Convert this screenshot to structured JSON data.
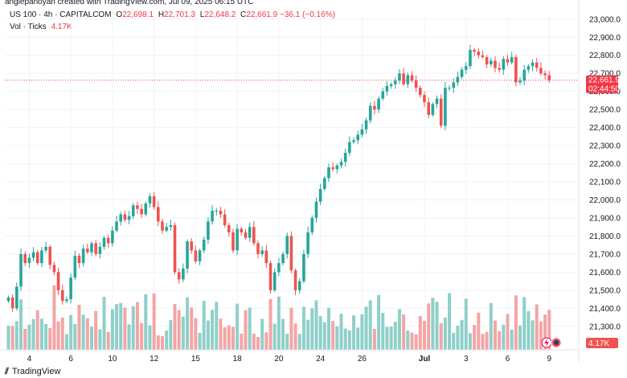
{
  "header": {
    "credit": "anglepanoyan created with TradingView.com, Jul 09, 2025 06:15 UTC",
    "symbol": "US 100 · 4h · CAPITALCOM",
    "o_label": "O",
    "o_value": "22,698.1",
    "h_label": "H",
    "h_value": "22,701.3",
    "l_label": "L",
    "l_value": "22,648.2",
    "c_label": "C",
    "c_value": "22,661.9",
    "change": "−36.1 (−0.16%)",
    "vol_label": "Vol · Ticks",
    "vol_value": "4.17K"
  },
  "price_tag": {
    "price": "22,661.9",
    "countdown": "02:44:50"
  },
  "vol_tag": "4.17K",
  "footer": {
    "brand": "TradingView"
  },
  "colors": {
    "up": "#26a69a",
    "down": "#ef5350",
    "vol_up": "#8fd0c9",
    "vol_down": "#f3a5a5",
    "grid": "#f0f3fa",
    "price_line": "#f23645"
  },
  "chart_data": {
    "type": "candlestick",
    "ylim": [
      21170,
      23040
    ],
    "y_ticks": [
      "23,000.0",
      "22,900.0",
      "22,800.0",
      "22,700.0",
      "22,600.0",
      "22,500.0",
      "22,400.0",
      "22,300.0",
      "22,200.0",
      "22,100.0",
      "22,000.0",
      "21,900.0",
      "21,800.0",
      "21,700.0",
      "21,600.0",
      "21,500.0",
      "21,400.0",
      "21,300.0"
    ],
    "x_labels": [
      {
        "label": "4",
        "index": 5
      },
      {
        "label": "6",
        "index": 15
      },
      {
        "label": "10",
        "index": 25
      },
      {
        "label": "12",
        "index": 35
      },
      {
        "label": "15",
        "index": 45
      },
      {
        "label": "18",
        "index": 55
      },
      {
        "label": "20",
        "index": 65
      },
      {
        "label": "24",
        "index": 75
      },
      {
        "label": "26",
        "index": 85
      },
      {
        "label": "Jul",
        "index": 100
      },
      {
        "label": "3",
        "index": 110
      },
      {
        "label": "6",
        "index": 120
      },
      {
        "label": "9",
        "index": 130
      }
    ],
    "close": [
      21460,
      21400,
      21520,
      21700,
      21650,
      21680,
      21710,
      21650,
      21720,
      21740,
      21640,
      21600,
      21500,
      21440,
      21450,
      21570,
      21690,
      21650,
      21730,
      21710,
      21760,
      21700,
      21740,
      21790,
      21760,
      21830,
      21880,
      21920,
      21890,
      21910,
      21970,
      21950,
      21920,
      21980,
      22020,
      21960,
      21880,
      21830,
      21850,
      21860,
      21600,
      21560,
      21620,
      21770,
      21720,
      21660,
      21720,
      21780,
      21880,
      21940,
      21940,
      21920,
      21860,
      21820,
      21720,
      21840,
      21820,
      21790,
      21850,
      21760,
      21700,
      21720,
      21650,
      21500,
      21600,
      21650,
      21700,
      21800,
      21610,
      21500,
      21550,
      21700,
      21820,
      21900,
      21990,
      22060,
      22120,
      22180,
      22170,
      22190,
      22210,
      22260,
      22320,
      22330,
      22360,
      22390,
      22440,
      22520,
      22500,
      22560,
      22600,
      22630,
      22640,
      22660,
      22700,
      22640,
      22690,
      22660,
      22620,
      22580,
      22540,
      22470,
      22530,
      22560,
      22410,
      22620,
      22620,
      22650,
      22680,
      22720,
      22740,
      22830,
      22820,
      22800,
      22790,
      22750,
      22770,
      22730,
      22720,
      22780,
      22760,
      22790,
      22650,
      22660,
      22720,
      22740,
      22760,
      22730,
      22700,
      22690,
      22662
    ],
    "vol_ticks": [
      2520,
      2480,
      3000,
      5250,
      2190,
      2620,
      3210,
      4130,
      3240,
      2690,
      2270,
      6720,
      2940,
      3360,
      1630,
      3630,
      2690,
      4690,
      3660,
      3290,
      2430,
      4060,
      2140,
      5530,
      1860,
      4230,
      4760,
      4880,
      4400,
      2660,
      4550,
      4970,
      2790,
      5790,
      2550,
      5860,
      1500,
      1420,
      2010,
      3100,
      4780,
      4140,
      3470,
      5470,
      4410,
      3300,
      1760,
      5100,
      3060,
      4160,
      5000,
      3250,
      2340,
      2560,
      2390,
      4810,
      1690,
      4130,
      4400,
      1690,
      1340,
      3220,
      1820,
      5300,
      2730,
      5540,
      3220,
      1670,
      4390,
      2740,
      1660,
      4500,
      3130,
      4330,
      5170,
      3510,
      2890,
      4380,
      3000,
      2450,
      3760,
      2210,
      2020,
      3580,
      2320,
      3700,
      4490,
      5150,
      2190,
      5710,
      3840,
      2390,
      2410,
      2930,
      4240,
      3690,
      2020,
      1790,
      1610,
      3530,
      3020,
      4830,
      5420,
      5000,
      2760,
      3370,
      5910,
      1780,
      2510,
      3120,
      5330,
      1730,
      2590,
      3880,
      1660,
      1880,
      4880,
      3060,
      1960,
      2620,
      3740,
      2120,
      5670,
      2540,
      5490,
      4040,
      3080,
      4740,
      2950,
      3680,
      4170
    ],
    "vol_max": 6700
  }
}
